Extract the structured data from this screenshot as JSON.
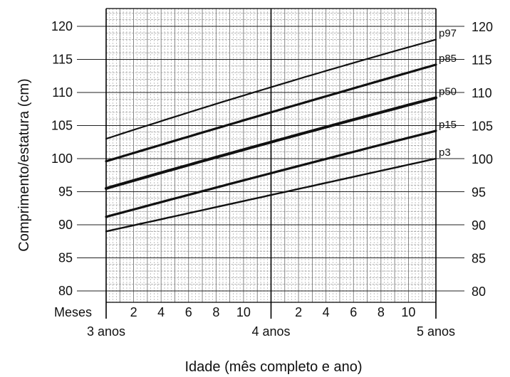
{
  "chart_data": {
    "type": "line",
    "ylabel": "Comprimento/estatura (cm)",
    "xlabel": "Idade (mês completo e ano)",
    "ylim": [
      80,
      122
    ],
    "yticks": [
      80,
      85,
      90,
      95,
      100,
      105,
      110,
      115,
      120
    ],
    "xlim_months": [
      0,
      24
    ],
    "month_row_label": "Meses",
    "month_ticks": [
      "2",
      "4",
      "6",
      "8",
      "10",
      "2",
      "4",
      "6",
      "8",
      "10"
    ],
    "year_labels": [
      "3 anos",
      "4 anos",
      "5 anos"
    ],
    "grid": true,
    "x": [
      0,
      12,
      24
    ],
    "series": [
      {
        "name": "p97",
        "values": [
          103.0,
          110.8,
          118.0
        ]
      },
      {
        "name": "p85",
        "values": [
          99.6,
          107.0,
          114.2
        ]
      },
      {
        "name": "p50",
        "values": [
          95.5,
          102.5,
          109.2
        ]
      },
      {
        "name": "p15",
        "values": [
          91.2,
          97.8,
          104.2
        ]
      },
      {
        "name": "p3",
        "values": [
          89.0,
          94.5,
          100.0
        ]
      }
    ]
  }
}
